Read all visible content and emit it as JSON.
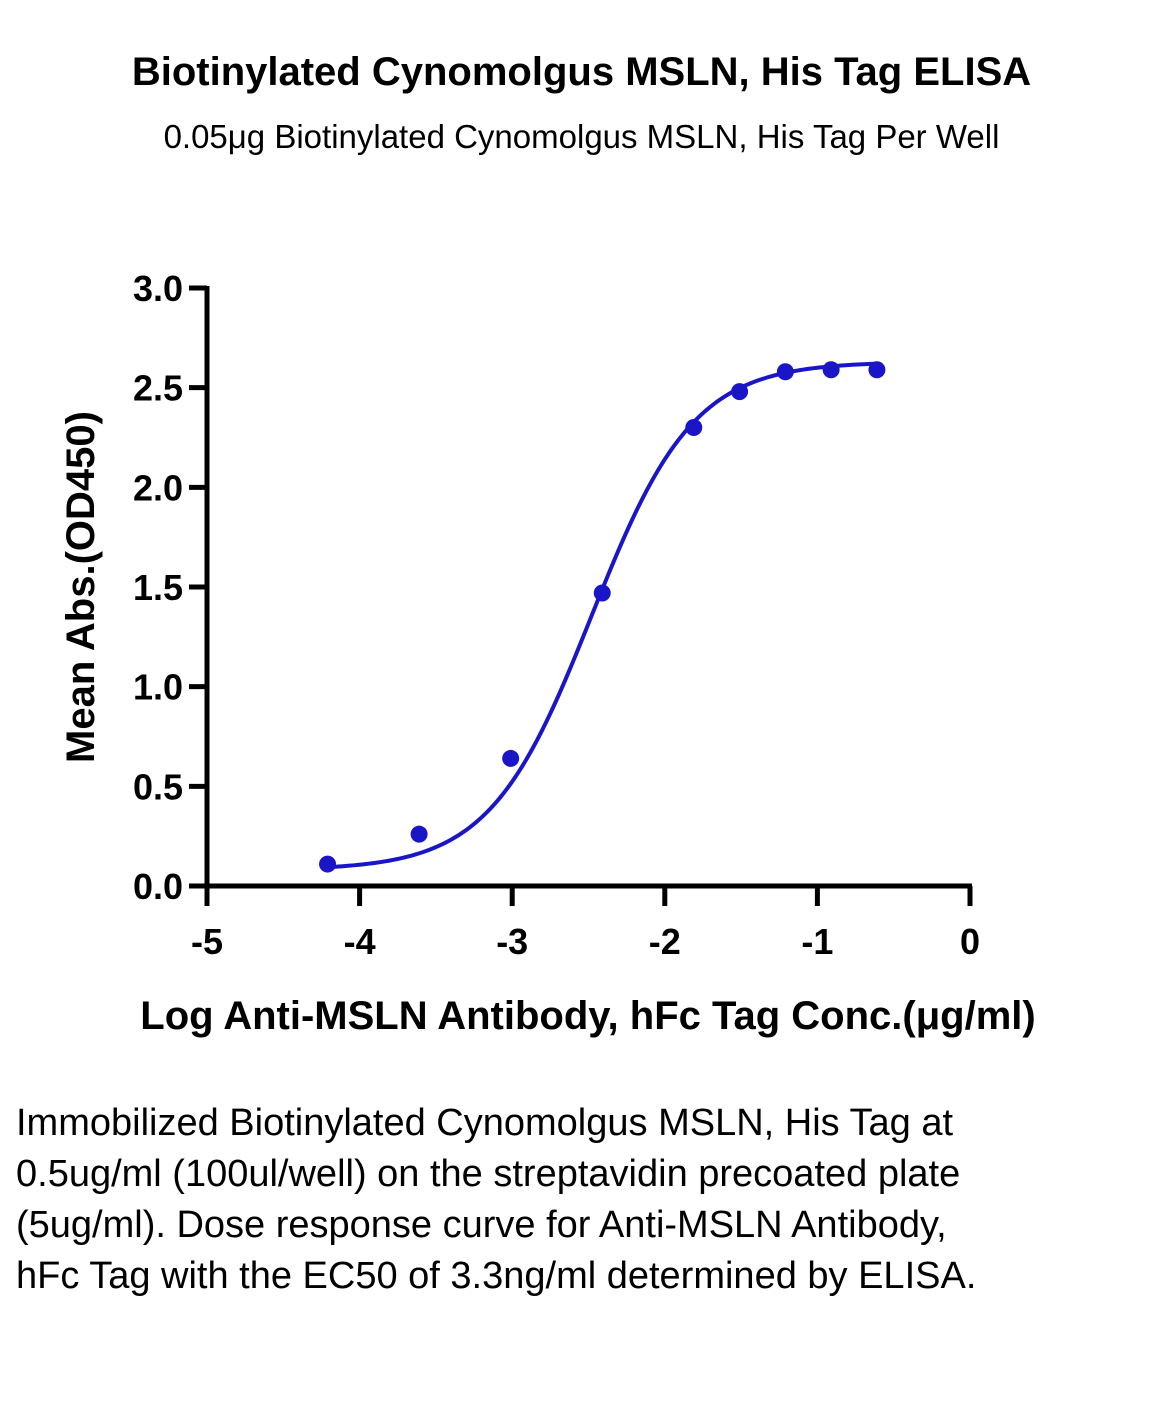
{
  "chart_data": {
    "type": "line",
    "title": "Biotinylated Cynomolgus MSLN, His Tag ELISA",
    "subtitle": "0.05μg Biotinylated Cynomolgus MSLN, His Tag Per Well",
    "xlabel": "Log Anti-MSLN Antibody, hFc Tag Conc.(μg/ml)",
    "ylabel": "Mean Abs.(OD450)",
    "xlim": [
      -5,
      0
    ],
    "ylim": [
      0,
      3.0
    ],
    "x_ticks": [
      "-5",
      "-4",
      "-3",
      "-2",
      "-1",
      "0"
    ],
    "y_ticks": [
      "0.0",
      "0.5",
      "1.0",
      "1.5",
      "2.0",
      "2.5",
      "3.0"
    ],
    "grid": false,
    "color": "#1a16c8",
    "series": [
      {
        "x": [
          -4.21,
          -3.61,
          -3.01,
          -2.41,
          -1.81,
          -1.51,
          -1.21,
          -0.91,
          -0.61
        ],
        "y": [
          0.11,
          0.26,
          0.64,
          1.47,
          2.3,
          2.48,
          2.58,
          2.59,
          2.59
        ]
      }
    ],
    "fit_curve": {
      "bottom": 0.08,
      "top": 2.63,
      "log_ec50": -2.48,
      "hill": 1.3
    }
  },
  "caption": "Immobilized Biotinylated Cynomolgus MSLN, His Tag at 0.5ug/ml (100ul/well) on the streptavidin precoated plate (5ug/ml). Dose response curve for Anti-MSLN Antibody, hFc Tag with the EC50 of 3.3ng/ml determined by ELISA."
}
